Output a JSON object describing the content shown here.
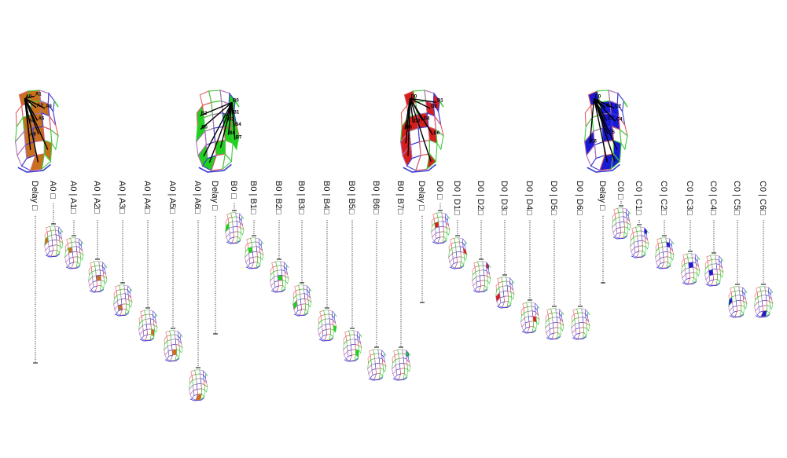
{
  "colors": {
    "A": "#c8701e",
    "B": "#1fd11f",
    "D": "#d61e1e",
    "C": "#1a1ad6",
    "mesh_red": "#e06060",
    "mesh_green": "#3ecb3e",
    "mesh_blue": "#3b3bd6",
    "mesh_purple": "#b070b0"
  },
  "groups": [
    {
      "key": "A",
      "big_labels": [
        "A0",
        "A1",
        "A2",
        "A3",
        "A4",
        "A5",
        "A6"
      ],
      "columns": [
        {
          "label": "Delay □"
        },
        {
          "label": "A0 □"
        },
        {
          "label": "A0 | A1□"
        },
        {
          "label": "A0 | A2□"
        },
        {
          "label": "A0 | A3□"
        },
        {
          "label": "A0 | A4□"
        },
        {
          "label": "A0 | A5□"
        },
        {
          "label": "A0 | A6□"
        }
      ]
    },
    {
      "key": "B",
      "big_labels": [
        "B0",
        "B1",
        "B2",
        "B3",
        "B4",
        "B5",
        "B6",
        "B7"
      ],
      "columns": [
        {
          "label": "Delay □"
        },
        {
          "label": "B0 □"
        },
        {
          "label": "B0 | B1□"
        },
        {
          "label": "B0 | B2□"
        },
        {
          "label": "B0 | B3□"
        },
        {
          "label": "B0 | B4□"
        },
        {
          "label": "B0 | B5□"
        },
        {
          "label": "B0 | B6□"
        },
        {
          "label": "B0 | B7□"
        }
      ]
    },
    {
      "key": "D",
      "big_labels": [
        "D0",
        "D1",
        "D2",
        "D3",
        "D4",
        "D5",
        "D6"
      ],
      "columns": [
        {
          "label": "Delay □"
        },
        {
          "label": "D0 □"
        },
        {
          "label": "D0 | D1□"
        },
        {
          "label": "D0 | D2□"
        },
        {
          "label": "D0 | D3□"
        },
        {
          "label": "D0 | D4□"
        },
        {
          "label": "D0 | D5□"
        },
        {
          "label": "D0 | D6□"
        }
      ]
    },
    {
      "key": "C",
      "big_labels": [
        "C0",
        "C1",
        "C2",
        "C3",
        "C4",
        "C5",
        "C6"
      ],
      "columns": [
        {
          "label": "Delay □"
        },
        {
          "label": "C0 □"
        },
        {
          "label": "C0 | C1□"
        },
        {
          "label": "C0 | C2□"
        },
        {
          "label": "C0 | C3□"
        },
        {
          "label": "C0 | C4□"
        },
        {
          "label": "C0 | C5□"
        },
        {
          "label": "C0 | C6□"
        }
      ]
    }
  ]
}
